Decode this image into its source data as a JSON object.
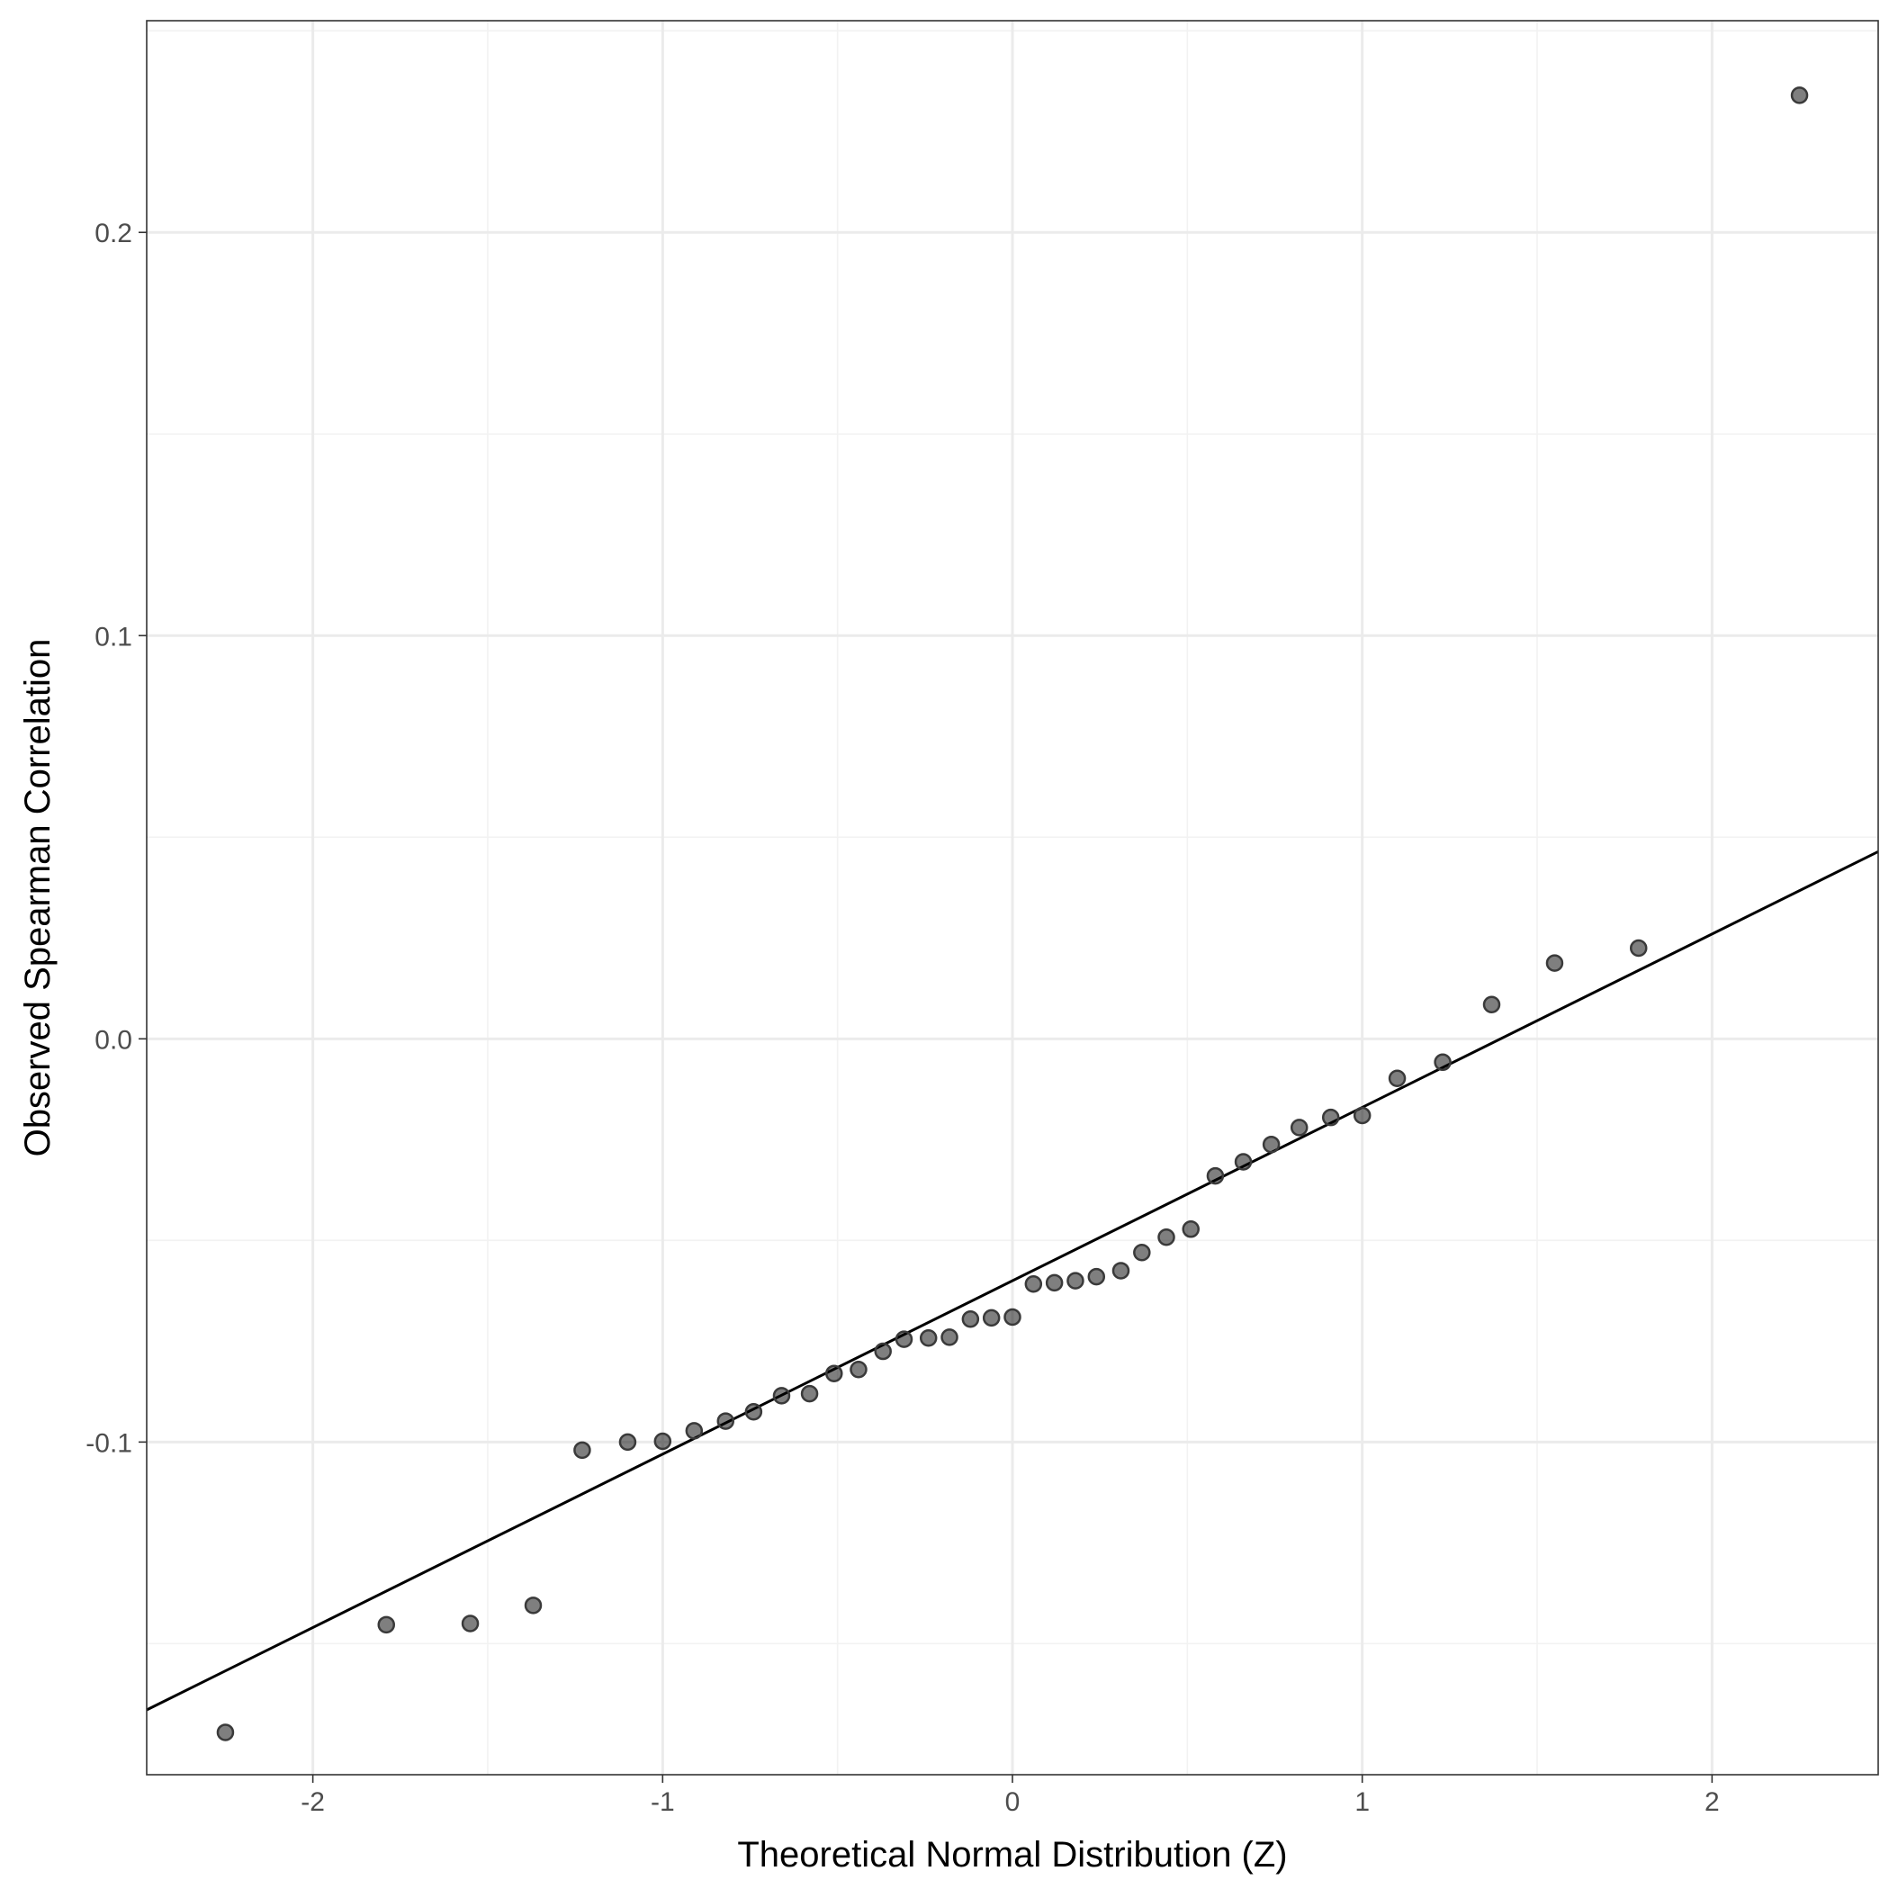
{
  "chart_data": {
    "type": "scatter",
    "title": "",
    "xlabel": "Theoretical Normal Distribution (Z)",
    "ylabel": "Observed Spearman Correlation",
    "xlim": [
      -2.475,
      2.475
    ],
    "ylim": [
      -0.1825,
      0.2525
    ],
    "x_ticks": [
      -2,
      -1,
      0,
      1,
      2
    ],
    "x_tick_labels": [
      "-2",
      "-1",
      "0",
      "1",
      "2"
    ],
    "y_ticks": [
      -0.1,
      0.0,
      0.1,
      0.2
    ],
    "y_tick_labels": [
      "-0.1",
      "0.0",
      "0.1",
      "0.2"
    ],
    "grid": true,
    "reference_line": {
      "intercept": -0.06,
      "slope": 0.043
    },
    "points": [
      {
        "x": -2.25,
        "y": -0.172
      },
      {
        "x": -1.79,
        "y": -0.1453
      },
      {
        "x": -1.55,
        "y": -0.145
      },
      {
        "x": -1.37,
        "y": -0.1405
      },
      {
        "x": -1.23,
        "y": -0.102
      },
      {
        "x": -1.1,
        "y": -0.1
      },
      {
        "x": -1.0,
        "y": -0.0998
      },
      {
        "x": -0.91,
        "y": -0.0972
      },
      {
        "x": -0.82,
        "y": -0.0948
      },
      {
        "x": -0.74,
        "y": -0.0925
      },
      {
        "x": -0.66,
        "y": -0.0885
      },
      {
        "x": -0.58,
        "y": -0.088
      },
      {
        "x": -0.51,
        "y": -0.083
      },
      {
        "x": -0.44,
        "y": -0.082
      },
      {
        "x": -0.37,
        "y": -0.0775
      },
      {
        "x": -0.31,
        "y": -0.0745
      },
      {
        "x": -0.24,
        "y": -0.0742
      },
      {
        "x": -0.18,
        "y": -0.074
      },
      {
        "x": -0.12,
        "y": -0.0695
      },
      {
        "x": -0.06,
        "y": -0.0692
      },
      {
        "x": 0.0,
        "y": -0.069
      },
      {
        "x": 0.06,
        "y": -0.0608
      },
      {
        "x": 0.12,
        "y": -0.0605
      },
      {
        "x": 0.18,
        "y": -0.06
      },
      {
        "x": 0.24,
        "y": -0.059
      },
      {
        "x": 0.31,
        "y": -0.0575
      },
      {
        "x": 0.37,
        "y": -0.053
      },
      {
        "x": 0.44,
        "y": -0.0492
      },
      {
        "x": 0.51,
        "y": -0.0472
      },
      {
        "x": 0.58,
        "y": -0.034
      },
      {
        "x": 0.66,
        "y": -0.0305
      },
      {
        "x": 0.74,
        "y": -0.0262
      },
      {
        "x": 0.82,
        "y": -0.022
      },
      {
        "x": 0.91,
        "y": -0.0195
      },
      {
        "x": 1.0,
        "y": -0.019
      },
      {
        "x": 1.1,
        "y": -0.0098
      },
      {
        "x": 1.23,
        "y": -0.0058
      },
      {
        "x": 1.37,
        "y": 0.0085
      },
      {
        "x": 1.55,
        "y": 0.0188
      },
      {
        "x": 1.79,
        "y": 0.0225
      },
      {
        "x": 2.25,
        "y": 0.234
      }
    ]
  }
}
